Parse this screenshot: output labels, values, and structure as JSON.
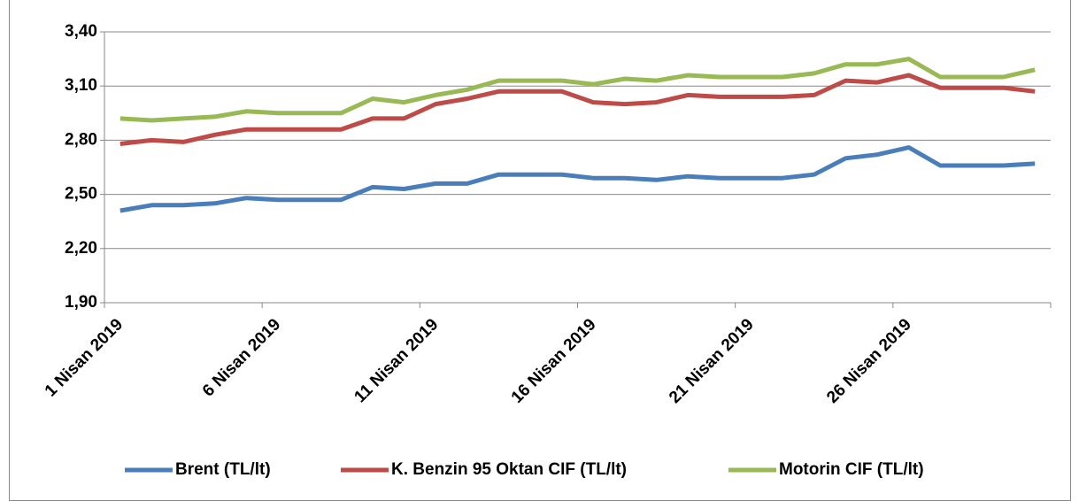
{
  "chart_data": {
    "type": "line",
    "categories": [
      "1 Nisan 2019",
      null,
      null,
      null,
      null,
      "6 Nisan 2019",
      null,
      null,
      null,
      null,
      "11 Nisan 2019",
      null,
      null,
      null,
      null,
      "16 Nisan 2019",
      null,
      null,
      null,
      null,
      "21 Nisan 2019",
      null,
      null,
      null,
      null,
      "26 Nisan 2019",
      null,
      null,
      null,
      null
    ],
    "series": [
      {
        "name": "Brent  (TL/lt)",
        "color": "#4a7ebb",
        "values": [
          2.41,
          2.44,
          2.44,
          2.45,
          2.48,
          2.47,
          2.47,
          2.47,
          2.54,
          2.53,
          2.56,
          2.56,
          2.61,
          2.61,
          2.61,
          2.59,
          2.59,
          2.58,
          2.6,
          2.59,
          2.59,
          2.59,
          2.61,
          2.7,
          2.72,
          2.76,
          2.66,
          2.66,
          2.66,
          2.67
        ]
      },
      {
        "name": "K. Benzin 95 Oktan CIF  (TL/lt)",
        "color": "#be4b48",
        "values": [
          2.78,
          2.8,
          2.79,
          2.83,
          2.86,
          2.86,
          2.86,
          2.86,
          2.92,
          2.92,
          3.0,
          3.03,
          3.07,
          3.07,
          3.07,
          3.01,
          3.0,
          3.01,
          3.05,
          3.04,
          3.04,
          3.04,
          3.05,
          3.13,
          3.12,
          3.16,
          3.09,
          3.09,
          3.09,
          3.07
        ]
      },
      {
        "name": "Motorin CIF  (TL/lt)",
        "color": "#98b954",
        "values": [
          2.92,
          2.91,
          2.92,
          2.93,
          2.96,
          2.95,
          2.95,
          2.95,
          3.03,
          3.01,
          3.05,
          3.08,
          3.13,
          3.13,
          3.13,
          3.11,
          3.14,
          3.13,
          3.16,
          3.15,
          3.15,
          3.15,
          3.17,
          3.22,
          3.22,
          3.25,
          3.15,
          3.15,
          3.15,
          3.19
        ]
      }
    ],
    "ylim": [
      1.9,
      3.4
    ],
    "yticks": [
      {
        "value": 1.9,
        "label": "1,90"
      },
      {
        "value": 2.2,
        "label": "2,20"
      },
      {
        "value": 2.5,
        "label": "2,50"
      },
      {
        "value": 2.8,
        "label": "2,80"
      },
      {
        "value": 3.1,
        "label": "3,10"
      },
      {
        "value": 3.4,
        "label": "3,40"
      }
    ],
    "grid": true
  }
}
